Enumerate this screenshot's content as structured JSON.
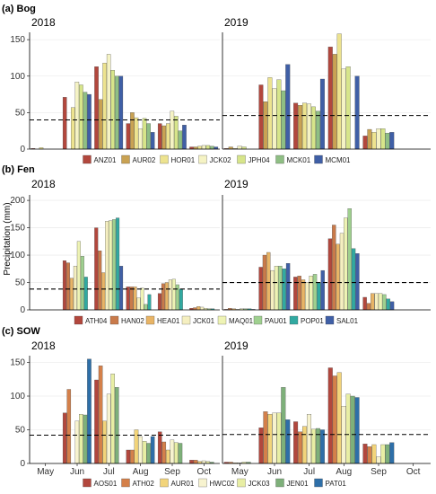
{
  "ylabel": "Precipitation (mm)",
  "xcategories": [
    "May",
    "Jun",
    "Jul",
    "Aug",
    "Sep",
    "Oct"
  ],
  "yticks": [
    0,
    50,
    100,
    150,
    200
  ],
  "chart_data": [
    {
      "type": "bar",
      "title": "(a) Bog",
      "ylim": [
        0,
        160
      ],
      "threshold_line": "dashed",
      "series_names": [
        "ANZ01",
        "AUR02",
        "HOR01",
        "JCK02",
        "JPH04",
        "MCK01",
        "MCM01"
      ],
      "colors": [
        "#b2473d",
        "#c9a253",
        "#ede38f",
        "#f5f3c4",
        "#d7e58a",
        "#8fbf84",
        "#3f5fa6"
      ],
      "panels": [
        {
          "year": "2018",
          "threshold": 40,
          "months": {
            "May": [
              1,
              0,
              2,
              0,
              0,
              0,
              0
            ],
            "Jun": [
              71,
              0,
              57,
              92,
              88,
              78,
              75
            ],
            "Jul": [
              113,
              68,
              118,
              130,
              108,
              100,
              100
            ],
            "Aug": [
              35,
              50,
              43,
              28,
              42,
              35,
              23
            ],
            "Sep": [
              35,
              32,
              35,
              52,
              45,
              25,
              33
            ],
            "Oct": [
              3,
              3,
              4,
              5,
              5,
              4,
              3
            ]
          }
        },
        {
          "year": "2019",
          "threshold": 46,
          "months": {
            "May": [
              1,
              3,
              1,
              4,
              3,
              0,
              0
            ],
            "Jun": [
              88,
              65,
              98,
              83,
              95,
              80,
              116
            ],
            "Jul": [
              63,
              60,
              63,
              62,
              58,
              52,
              96
            ],
            "Aug": [
              140,
              130,
              158,
              110,
              113,
              0,
              100
            ],
            "Sep": [
              18,
              27,
              23,
              28,
              28,
              22,
              23
            ],
            "Oct": [
              0,
              0,
              0,
              0,
              0,
              0,
              0
            ]
          }
        }
      ]
    },
    {
      "type": "bar",
      "title": "(b) Fen",
      "ylim": [
        0,
        210
      ],
      "threshold_line": "dashed",
      "series_names": [
        "ATH04",
        "HAN02",
        "HEA01",
        "JCK01",
        "MAQ01",
        "PAU01",
        "POP01",
        "SAL01"
      ],
      "colors": [
        "#b2473d",
        "#c97a4a",
        "#e8b466",
        "#f5efc0",
        "#eef3b4",
        "#9fd08f",
        "#31a9a1",
        "#3f5fa6"
      ],
      "panels": [
        {
          "year": "2018",
          "threshold": 38,
          "months": {
            "May": [
              0,
              0,
              0,
              0,
              0,
              0,
              0,
              0
            ],
            "Jun": [
              90,
              86,
              58,
              80,
              125,
              98,
              60,
              0
            ],
            "Jul": [
              150,
              108,
              68,
              162,
              163,
              165,
              168,
              80
            ],
            "Aug": [
              42,
              42,
              42,
              22,
              40,
              10,
              28,
              0
            ],
            "Sep": [
              30,
              48,
              50,
              55,
              56,
              46,
              38,
              0
            ],
            "Oct": [
              3,
              4,
              6,
              5,
              3,
              2,
              2,
              0
            ]
          }
        },
        {
          "year": "2019",
          "threshold": 50,
          "months": {
            "May": [
              1,
              3,
              2,
              1,
              2,
              2,
              2,
              1
            ],
            "Jun": [
              78,
              100,
              105,
              72,
              80,
              80,
              75,
              85
            ],
            "Jul": [
              60,
              62,
              55,
              50,
              62,
              65,
              50,
              72
            ],
            "Aug": [
              130,
              155,
              120,
              140,
              168,
              185,
              112,
              103
            ],
            "Sep": [
              23,
              12,
              30,
              30,
              30,
              28,
              20,
              15
            ],
            "Oct": [
              0,
              0,
              0,
              0,
              0,
              0,
              0,
              0
            ]
          }
        }
      ]
    },
    {
      "type": "bar",
      "title": "(c) SOW",
      "ylim": [
        0,
        160
      ],
      "threshold_line": "dashed",
      "series_names": [
        "AOS01",
        "ATH02",
        "AUR01",
        "HWC02",
        "JCK03",
        "JEN01",
        "PAT01"
      ],
      "colors": [
        "#b2473d",
        "#d4804a",
        "#f2d47a",
        "#f7f3cf",
        "#e8eea4",
        "#7eb07a",
        "#2e6fa8"
      ],
      "panels": [
        {
          "year": "2018",
          "threshold": 42,
          "months": {
            "May": [
              0,
              0,
              0,
              0,
              0,
              0,
              0
            ],
            "Jun": [
              75,
              110,
              0,
              63,
              73,
              72,
              155
            ],
            "Jul": [
              124,
              145,
              63,
              103,
              133,
              113,
              0
            ],
            "Aug": [
              20,
              20,
              50,
              40,
              33,
              30,
              40
            ],
            "Sep": [
              47,
              32,
              20,
              35,
              31,
              30,
              0
            ],
            "Oct": [
              5,
              5,
              3,
              4,
              3,
              2,
              0
            ]
          }
        },
        {
          "year": "2019",
          "threshold": 43,
          "months": {
            "May": [
              2,
              2,
              1,
              1,
              2,
              2,
              0
            ],
            "Jun": [
              53,
              77,
              73,
              75,
              75,
              113,
              65
            ],
            "Jul": [
              62,
              47,
              55,
              73,
              51,
              52,
              50
            ],
            "Aug": [
              142,
              130,
              135,
              85,
              103,
              100,
              98
            ],
            "Sep": [
              29,
              25,
              28,
              10,
              28,
              28,
              31
            ],
            "Oct": [
              0,
              0,
              0,
              0,
              0,
              0,
              0
            ]
          }
        }
      ]
    }
  ]
}
